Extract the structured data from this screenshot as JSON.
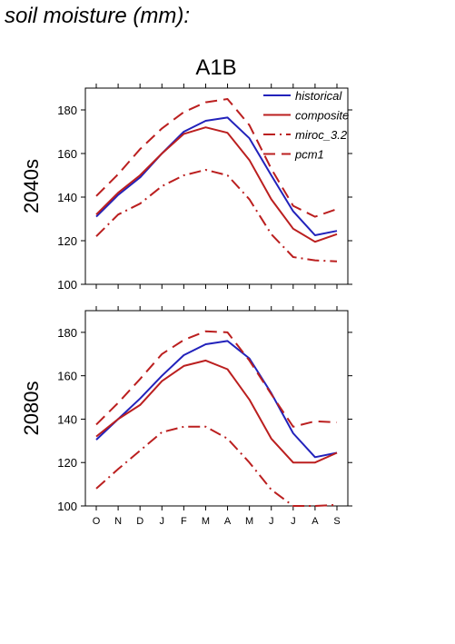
{
  "page": {
    "title": "soil moisture (mm):"
  },
  "chart_data": {
    "type": "line",
    "title": "A1B",
    "categories": [
      "O",
      "N",
      "D",
      "J",
      "F",
      "M",
      "A",
      "M",
      "J",
      "J",
      "A",
      "S"
    ],
    "ylim": [
      100,
      190
    ],
    "yticks": [
      100,
      120,
      140,
      160,
      180
    ],
    "grid": false,
    "legend_position": "top-right",
    "series_styles": {
      "historical": {
        "color": "#2222bb",
        "dash": ""
      },
      "composite": {
        "color": "#bb1f1f",
        "dash": ""
      },
      "miroc_3.2": {
        "color": "#bb1f1f",
        "dash": "13,5,2,5"
      },
      "pcm1": {
        "color": "#bb1f1f",
        "dash": "13,7"
      }
    },
    "panels": [
      {
        "label": "2040s",
        "series": [
          {
            "name": "historical",
            "values": [
              131,
              141,
              149,
              160,
              170,
              175,
              176.5,
              167,
              150,
              133.5,
              122.5,
              124.5
            ]
          },
          {
            "name": "composite",
            "values": [
              132,
              142,
              150,
              160,
              169,
              172,
              169.5,
              157,
              139,
              125.5,
              119.5,
              123
            ]
          },
          {
            "name": "miroc_3.2",
            "values": [
              122,
              132,
              137,
              145,
              150,
              152.5,
              150,
              139,
              123,
              112.5,
              111,
              110.5
            ]
          },
          {
            "name": "pcm1",
            "values": [
              140.5,
              150.5,
              162,
              171.5,
              179,
              183.5,
              185,
              173,
              153,
              136,
              131,
              134.5
            ]
          }
        ]
      },
      {
        "label": "2080s",
        "series": [
          {
            "name": "historical",
            "values": [
              130.5,
              140,
              149.5,
              160,
              169.5,
              174.5,
              176,
              168,
              152,
              133.5,
              122.5,
              124.5
            ]
          },
          {
            "name": "composite",
            "values": [
              132,
              140,
              146.5,
              157.5,
              164.5,
              167,
              163,
              149,
              131,
              120,
              120,
              124.5
            ]
          },
          {
            "name": "miroc_3.2",
            "values": [
              108,
              117,
              125.5,
              134,
              136.5,
              136.5,
              131,
              120,
              107.5,
              100,
              100,
              100.5
            ]
          },
          {
            "name": "pcm1",
            "values": [
              137.5,
              147.5,
              158.5,
              170,
              176.5,
              180.5,
              180,
              167,
              151.5,
              136.5,
              139,
              138.5
            ]
          }
        ]
      }
    ]
  }
}
